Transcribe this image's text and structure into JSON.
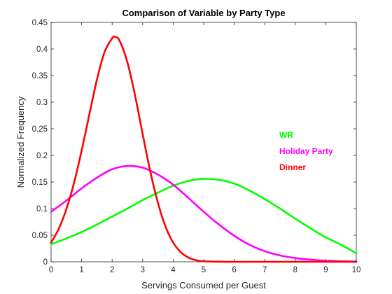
{
  "chart_data": {
    "type": "line",
    "title": "Comparison of Variable by Party Type",
    "xlabel": "Servings Consumed per Guest",
    "ylabel": "Normalized Frequency",
    "xlim": [
      0,
      10
    ],
    "ylim": [
      0,
      0.45
    ],
    "x_ticks": [
      "0",
      "1",
      "2",
      "3",
      "4",
      "5",
      "6",
      "7",
      "8",
      "9",
      "10"
    ],
    "y_ticks": [
      "0",
      "0.05",
      "0.1",
      "0.15",
      "0.2",
      "0.25",
      "0.3",
      "0.35",
      "0.4",
      "0.45"
    ],
    "grid": false,
    "legend_position": "right",
    "series": [
      {
        "name": "WR",
        "color": "#00ff00",
        "x": [
          0,
          0.5,
          1,
          1.5,
          2,
          2.5,
          3,
          3.5,
          4,
          4.5,
          5,
          5.5,
          6,
          6.5,
          7,
          7.5,
          8,
          8.5,
          9,
          9.5,
          10
        ],
        "y": [
          0.033,
          0.044,
          0.056,
          0.07,
          0.085,
          0.1,
          0.116,
          0.13,
          0.143,
          0.152,
          0.156,
          0.154,
          0.147,
          0.134,
          0.118,
          0.1,
          0.081,
          0.063,
          0.046,
          0.032,
          0.016
        ]
      },
      {
        "name": "Holiday Party",
        "color": "#ff00ff",
        "x": [
          0,
          0.5,
          1,
          1.5,
          2,
          2.5,
          3,
          3.5,
          4,
          4.5,
          5,
          5.5,
          6,
          6.5,
          7,
          7.5,
          8,
          8.5,
          9,
          9.5,
          10
        ],
        "y": [
          0.094,
          0.115,
          0.138,
          0.158,
          0.174,
          0.18,
          0.177,
          0.164,
          0.145,
          0.12,
          0.094,
          0.07,
          0.049,
          0.032,
          0.02,
          0.012,
          0.007,
          0.004,
          0.002,
          0.001,
          0.0005
        ]
      },
      {
        "name": "Dinner",
        "color": "#ff0000",
        "x": [
          0,
          0.25,
          0.5,
          0.75,
          1,
          1.25,
          1.5,
          1.75,
          2,
          2.1,
          2.25,
          2.5,
          2.75,
          3,
          3.25,
          3.5,
          3.75,
          4,
          4.25,
          4.5,
          4.75,
          5,
          5.5,
          6,
          7,
          8,
          9,
          10
        ],
        "y": [
          0.036,
          0.062,
          0.099,
          0.148,
          0.209,
          0.276,
          0.342,
          0.394,
          0.42,
          0.423,
          0.415,
          0.375,
          0.313,
          0.24,
          0.17,
          0.111,
          0.066,
          0.036,
          0.018,
          0.008,
          0.003,
          0.001,
          0.0002,
          0,
          0,
          0,
          0,
          0
        ]
      }
    ]
  }
}
